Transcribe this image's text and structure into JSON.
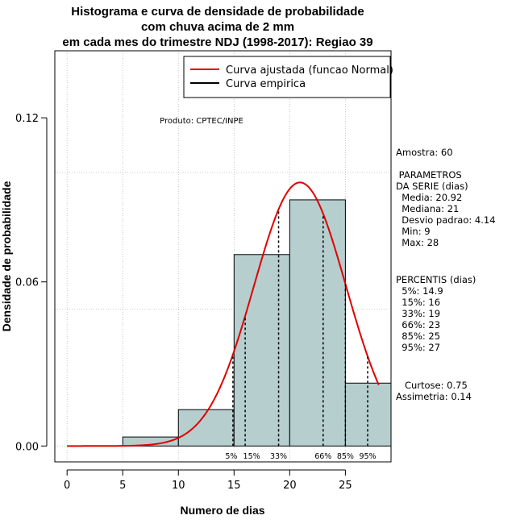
{
  "chart_data": {
    "type": "bar",
    "title_lines": [
      "Histograma e curva de densidade de probabilidade",
      "com chuva acima de 2 mm",
      "em cada mes do trimestre NDJ (1998-2017): Regiao 39"
    ],
    "xlabel": "Numero de dias",
    "ylabel": "Densidade de probabilidade",
    "xlim": [
      -1.1,
      29.1
    ],
    "ylim": [
      -0.0058,
      0.1445
    ],
    "x_ticks": [
      0,
      5,
      10,
      15,
      20,
      25
    ],
    "y_ticks": [
      0.0,
      0.06,
      0.12
    ],
    "y_tick_labels": [
      "0.00",
      "0.06",
      "0.12"
    ],
    "grid_x": [
      0,
      5,
      10,
      15,
      20,
      25
    ],
    "grid_y": [
      0.0,
      0.05,
      0.1,
      0.15
    ],
    "bins": [
      {
        "start": 5,
        "end": 10,
        "density": 0.0033
      },
      {
        "start": 10,
        "end": 15,
        "density": 0.0133
      },
      {
        "start": 15,
        "end": 20,
        "density": 0.07
      },
      {
        "start": 20,
        "end": 25,
        "density": 0.09
      },
      {
        "start": 25,
        "end": 29.1,
        "density": 0.023
      }
    ],
    "bar_fill": "#b6cece",
    "normal_curve": {
      "mean": 20.92,
      "sd": 4.14,
      "x_from": 0,
      "x_to": 28,
      "color": "#e00000"
    },
    "percentile_lines": [
      {
        "x": 14.9,
        "label": "5%"
      },
      {
        "x": 16,
        "label": "15%"
      },
      {
        "x": 19,
        "label": "33%"
      },
      {
        "x": 23,
        "label": "66%"
      },
      {
        "x": 25,
        "label": "85%"
      },
      {
        "x": 27,
        "label": "95%"
      }
    ],
    "legend": {
      "position": "top-right",
      "entries": [
        {
          "label": "Curva ajustada (funcao Normal)",
          "color": "#e00000"
        },
        {
          "label": "Curva empirica",
          "color": "#000000"
        }
      ]
    },
    "annotation": "Produto: CPTEC/INPE"
  },
  "side_panel": {
    "amostra": "Amostra: 60",
    "parametros": [
      " PARAMETROS",
      "DA SERIE (dias)",
      "  Media: 20.92",
      "  Mediana: 21",
      "  Desvio padrao: 4.14",
      "  Min: 9",
      "  Max: 28"
    ],
    "percentis": [
      "PERCENTIS (dias)",
      "  5%: 14.9",
      "  15%: 16",
      "  33%: 19",
      "  66%: 23",
      "  85%: 25",
      "  95%: 27"
    ],
    "curtose": "   Curtose: 0.75",
    "assimetria": "Assimetria: 0.14"
  }
}
